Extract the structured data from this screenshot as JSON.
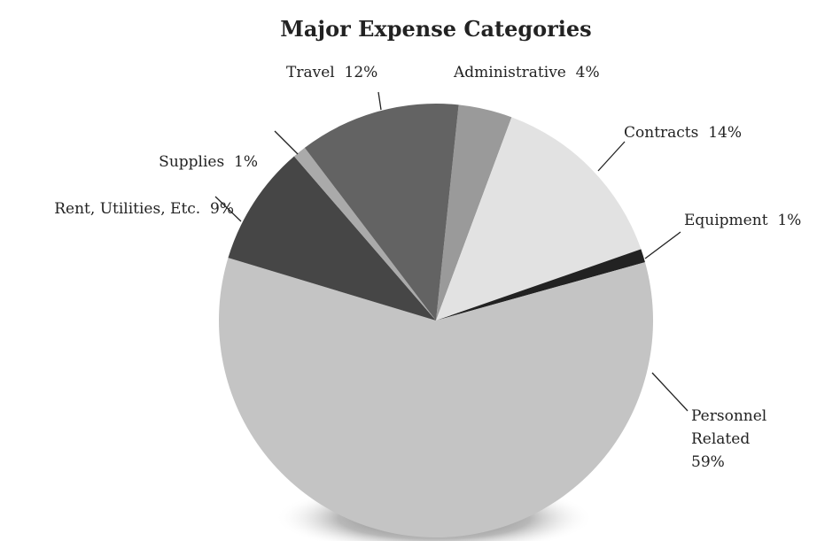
{
  "chart_data": {
    "type": "pie",
    "title": "Major Expense Categories",
    "categories": [
      "Administrative",
      "Contracts",
      "Equipment",
      "Personnel Related",
      "Rent, Utilities, Etc.",
      "Supplies",
      "Travel"
    ],
    "values": [
      4,
      14,
      1,
      59,
      9,
      1,
      12
    ],
    "value_labels": [
      "4%",
      "14%",
      "1%",
      "59%",
      "9%",
      "1%",
      "12%"
    ],
    "colors": [
      "#9a9a9a",
      "#e2e2e2",
      "#222222",
      "#c4c4c4",
      "#464646",
      "#aaaaaa",
      "#636363"
    ]
  }
}
